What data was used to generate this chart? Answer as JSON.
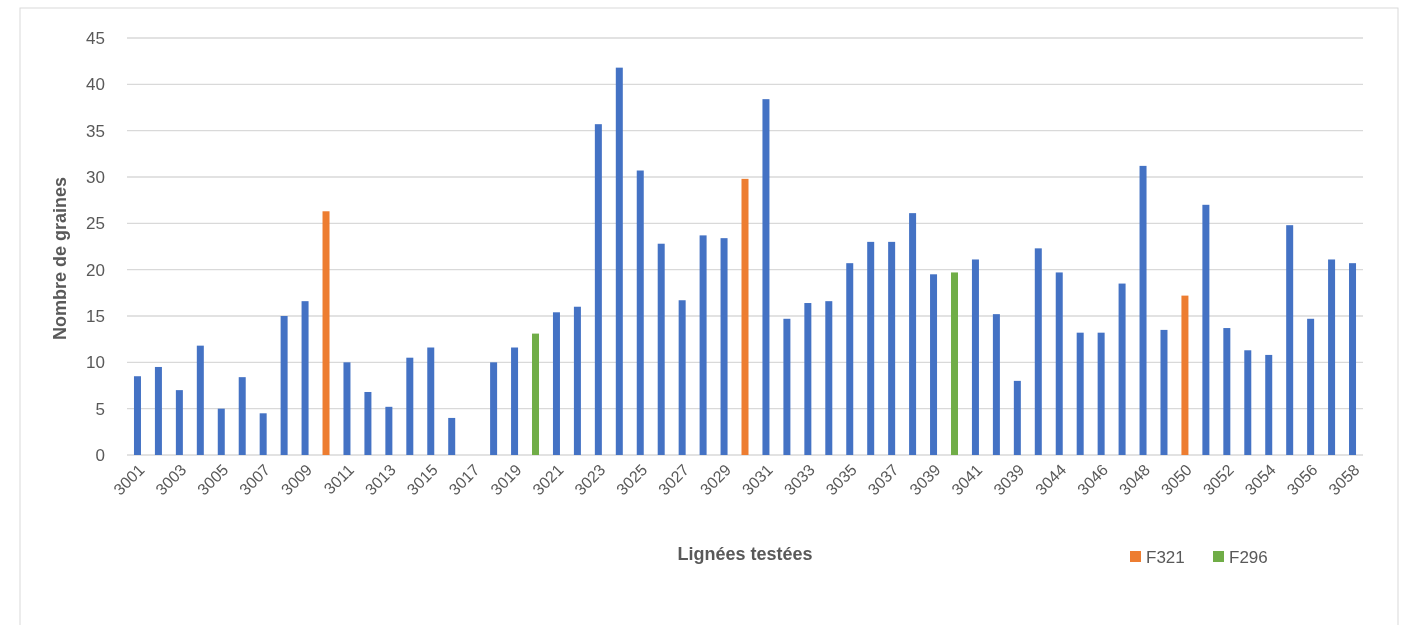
{
  "chart_data": {
    "type": "bar",
    "xlabel": "Lignées testées",
    "ylabel": "Nombre de graines",
    "categories": [
      "3001",
      null,
      "3003",
      null,
      "3005",
      null,
      "3007",
      null,
      "3009",
      null,
      "3011",
      null,
      "3013",
      null,
      "3015",
      null,
      "3017",
      null,
      "3019",
      null,
      "3021",
      null,
      "3023",
      null,
      "3025",
      null,
      "3027",
      null,
      "3029",
      null,
      "3031",
      null,
      "3033",
      null,
      "3035",
      null,
      "3037",
      null,
      "3039",
      null,
      "3041",
      null,
      "3039",
      null,
      "3044",
      null,
      "3046",
      null,
      "3048",
      null,
      "3050",
      null,
      "3052",
      null,
      "3054",
      null,
      "3056",
      null,
      "3058"
    ],
    "series": [
      {
        "color": "#4472c4",
        "values": [
          8.5,
          9.5,
          7.0,
          11.8,
          5.0,
          8.4,
          4.5,
          15.0,
          16.6,
          null,
          10.0,
          6.8,
          5.2,
          10.5,
          11.6,
          4.0,
          null,
          10.0,
          11.6,
          null,
          15.4,
          16.0,
          35.7,
          41.8,
          30.7,
          22.8,
          16.7,
          23.7,
          23.4,
          null,
          38.4,
          14.7,
          16.4,
          16.6,
          20.7,
          23.0,
          23.0,
          26.1,
          19.5,
          null,
          21.1,
          15.2,
          8.0,
          22.3,
          19.7,
          13.2,
          13.2,
          18.5,
          31.2,
          13.5,
          null,
          27.0,
          13.7,
          11.3,
          10.8,
          24.8,
          14.7,
          21.1,
          20.7
        ]
      },
      {
        "name": "F321",
        "color": "#ed7d31",
        "values": [
          null,
          null,
          null,
          null,
          null,
          null,
          null,
          null,
          null,
          26.3,
          null,
          null,
          null,
          null,
          null,
          null,
          null,
          null,
          null,
          null,
          null,
          null,
          null,
          null,
          null,
          null,
          null,
          null,
          null,
          29.8,
          null,
          null,
          null,
          null,
          null,
          null,
          null,
          null,
          null,
          null,
          null,
          null,
          null,
          null,
          null,
          null,
          null,
          null,
          null,
          null,
          17.2,
          null,
          null,
          null,
          null,
          null,
          null,
          null,
          null
        ]
      },
      {
        "name": "F296",
        "color": "#70ad47",
        "values": [
          null,
          null,
          null,
          null,
          null,
          null,
          null,
          null,
          null,
          null,
          null,
          null,
          null,
          null,
          null,
          null,
          null,
          null,
          null,
          13.1,
          null,
          null,
          null,
          null,
          null,
          null,
          null,
          null,
          null,
          null,
          null,
          null,
          null,
          null,
          null,
          null,
          null,
          null,
          null,
          19.7,
          null,
          null,
          null,
          null,
          null,
          null,
          null,
          null,
          null,
          null,
          null,
          null,
          null,
          null,
          null,
          null,
          null,
          null,
          null
        ]
      }
    ],
    "ylim": [
      0,
      45
    ],
    "yticks": [
      0,
      5,
      10,
      15,
      20,
      25,
      30,
      35,
      40,
      45
    ],
    "grid": "y",
    "legend": "bottom right"
  }
}
